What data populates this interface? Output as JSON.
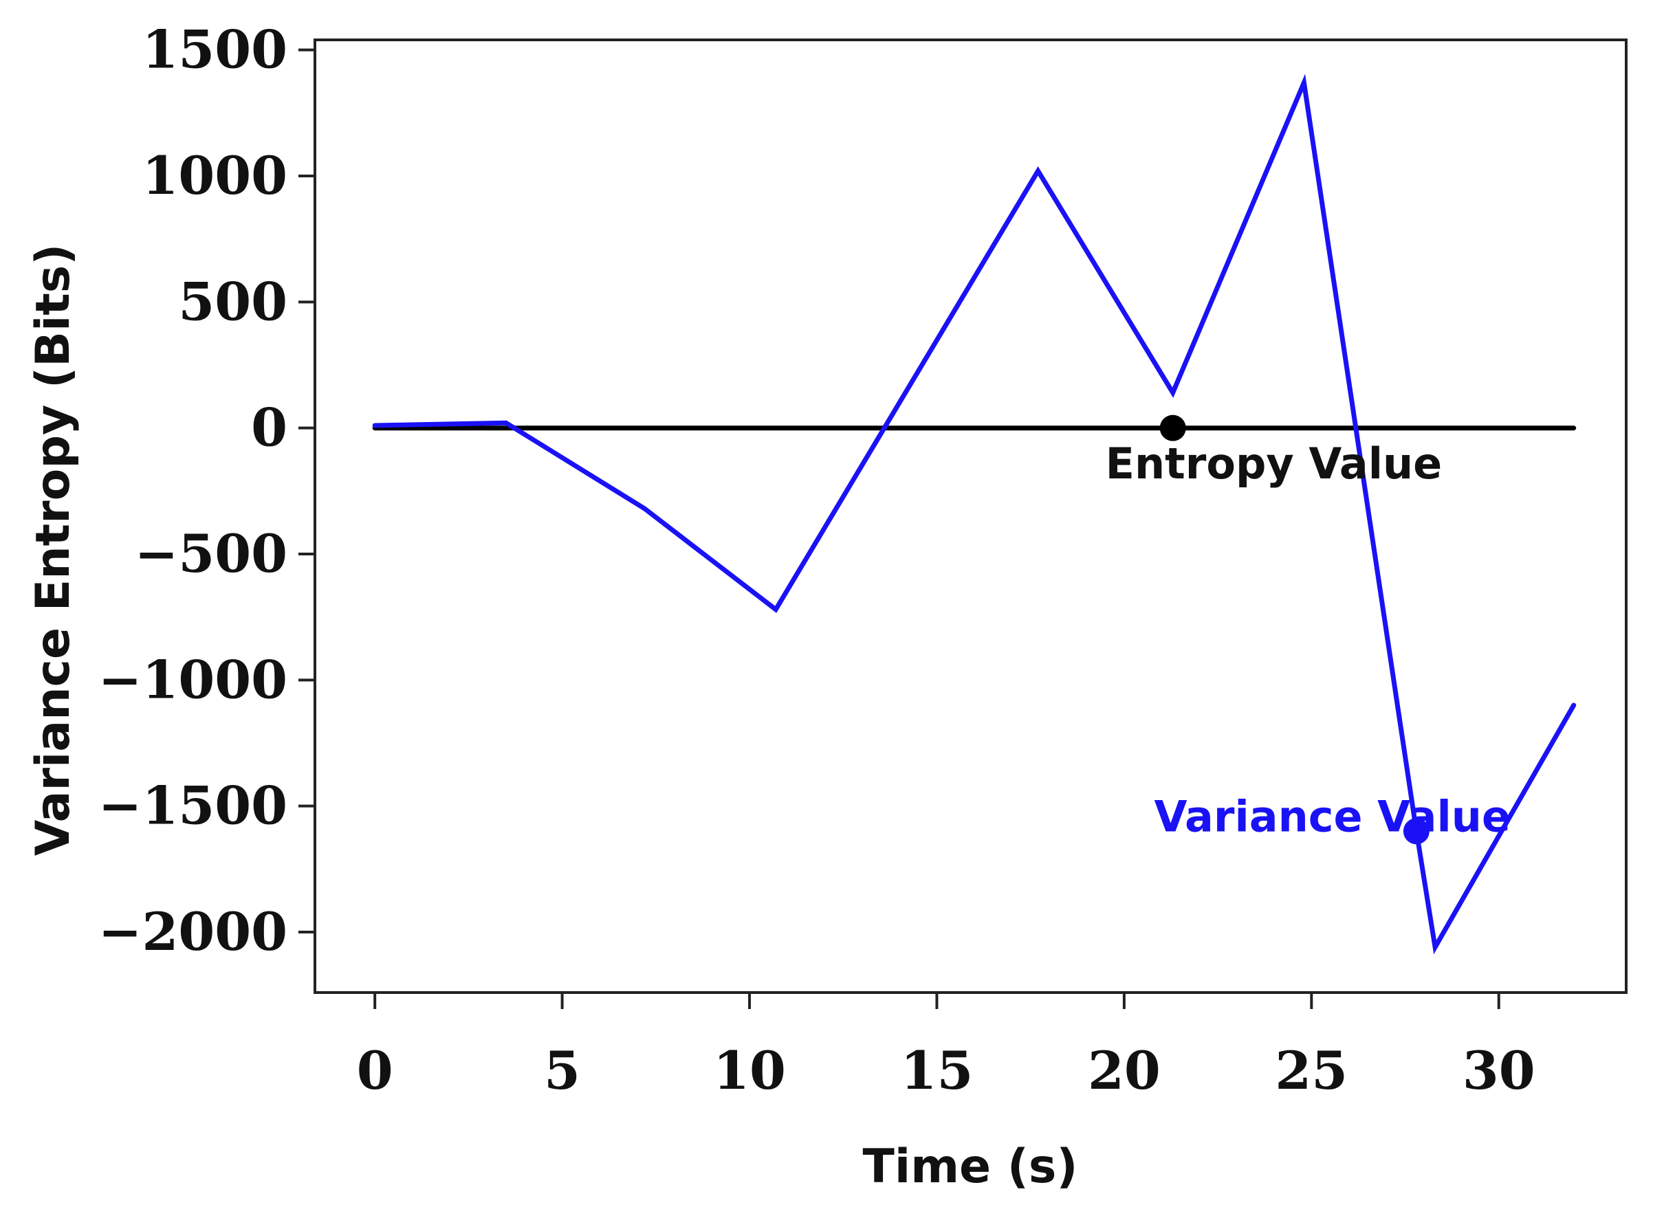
{
  "chart_data": {
    "type": "line",
    "title": "",
    "xlabel": "Time (s)",
    "ylabel": "Variance  Entropy (Bits)",
    "xlim": [
      -1.6,
      33.4
    ],
    "ylim": [
      -2240,
      1540
    ],
    "xticks": [
      0,
      5,
      10,
      15,
      20,
      25,
      30
    ],
    "xtick_labels": [
      "0",
      "5",
      "10",
      "15",
      "20",
      "25",
      "30"
    ],
    "yticks": [
      1500,
      1000,
      500,
      0,
      -500,
      -1000,
      -1500,
      -2000
    ],
    "ytick_labels": [
      "1500",
      "1000",
      "500",
      "0",
      "−500",
      "−1000",
      "−1500",
      "−2000"
    ],
    "grid": false,
    "series": [
      {
        "name": "Entropy Value",
        "color": "#000000",
        "x": [
          0,
          32
        ],
        "y": [
          0,
          0
        ],
        "marker": {
          "x": 21.3,
          "y": 0
        }
      },
      {
        "name": "Variance Value",
        "color": "#1a12f5",
        "x": [
          0,
          3.5,
          7.2,
          10.7,
          17.7,
          21.3,
          24.8,
          27.8,
          28.3,
          32
        ],
        "y": [
          10,
          20,
          -320,
          -720,
          1020,
          140,
          1370,
          -1600,
          -2060,
          -1100
        ],
        "marker": {
          "x": 27.8,
          "y": -1600
        }
      }
    ],
    "annotations": [
      {
        "text": "Entropy Value",
        "color": "#111111",
        "x": 19.5,
        "y": -200
      },
      {
        "text": "Variance Value",
        "color": "#1a12f5",
        "x": 20.8,
        "y": -1600
      }
    ]
  }
}
